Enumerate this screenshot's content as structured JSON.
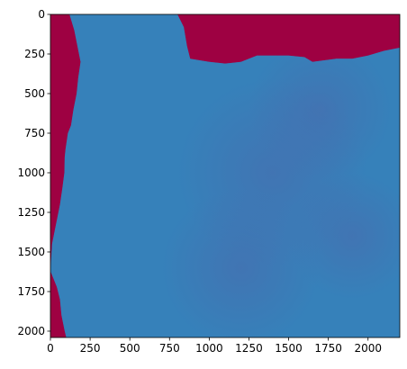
{
  "chart_data": {
    "type": "heatmap",
    "title": "",
    "xlabel": "",
    "ylabel": "",
    "xlim": [
      0,
      2200
    ],
    "ylim": [
      2040,
      0
    ],
    "x_ticks": [
      0,
      250,
      500,
      750,
      1000,
      1250,
      1500,
      1750,
      2000
    ],
    "y_ticks": [
      0,
      250,
      500,
      750,
      1000,
      1250,
      1500,
      1750,
      2000
    ],
    "grid": false,
    "colorbar": false,
    "colors": {
      "ocean": "#9e0142",
      "land_light": "#3288bd",
      "land_mid": "#3a7bb8",
      "land_dark": "#4a6aad"
    },
    "coastline_west": [
      [
        120,
        0
      ],
      [
        150,
        100
      ],
      [
        170,
        200
      ],
      [
        190,
        300
      ],
      [
        175,
        400
      ],
      [
        165,
        500
      ],
      [
        145,
        600
      ],
      [
        130,
        700
      ],
      [
        110,
        750
      ],
      [
        95,
        850
      ],
      [
        90,
        900
      ],
      [
        88,
        1000
      ],
      [
        75,
        1100
      ],
      [
        60,
        1200
      ],
      [
        40,
        1300
      ],
      [
        30,
        1350
      ],
      [
        10,
        1450
      ],
      [
        0,
        1620
      ],
      [
        40,
        1720
      ],
      [
        60,
        1800
      ],
      [
        70,
        1900
      ],
      [
        90,
        2000
      ],
      [
        100,
        2040
      ]
    ],
    "coastline_north": [
      [
        200,
        0
      ],
      [
        520,
        0
      ],
      [
        620,
        0
      ],
      [
        800,
        0
      ],
      [
        840,
        80
      ],
      [
        860,
        200
      ],
      [
        880,
        280
      ],
      [
        1000,
        300
      ],
      [
        1100,
        310
      ],
      [
        1200,
        300
      ],
      [
        1300,
        260
      ],
      [
        1500,
        260
      ],
      [
        1600,
        270
      ],
      [
        1650,
        300
      ],
      [
        1800,
        280
      ],
      [
        1900,
        280
      ],
      [
        2000,
        260
      ],
      [
        2100,
        230
      ],
      [
        2200,
        210
      ]
    ]
  }
}
